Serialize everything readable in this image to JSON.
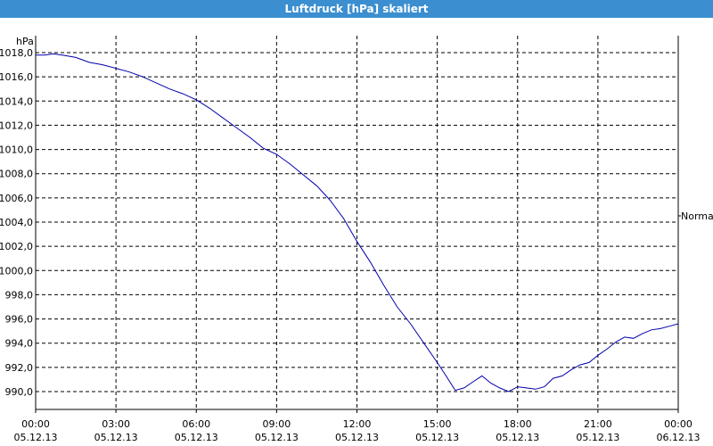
{
  "window": {
    "title": "Luftdruck [hPa] skaliert"
  },
  "colors": {
    "titlebar": "#3b8fd0",
    "series": "#0000aa",
    "grid": "#000000"
  },
  "chart_data": {
    "type": "line",
    "title": "Luftdruck [hPa] skaliert",
    "ylabel": "hPa",
    "right_label": "Normal",
    "ylim": [
      988.6,
      1019.0
    ],
    "xlim_hours": [
      0,
      24
    ],
    "grid": true,
    "y_ticks": [
      "1018,0",
      "1016,0",
      "1014,0",
      "1012,0",
      "1010,0",
      "1008,0",
      "1006,0",
      "1004,0",
      "1002,0",
      "1000,0",
      "998,0",
      "996,0",
      "994,0",
      "992,0",
      "990,0"
    ],
    "y_tick_values": [
      1018,
      1016,
      1014,
      1012,
      1010,
      1008,
      1006,
      1004,
      1002,
      1000,
      998,
      996,
      994,
      992,
      990
    ],
    "x_ticks": [
      {
        "time": "00:00",
        "date": "05.12.13"
      },
      {
        "time": "03:00",
        "date": "05.12.13"
      },
      {
        "time": "06:00",
        "date": "05.12.13"
      },
      {
        "time": "09:00",
        "date": "05.12.13"
      },
      {
        "time": "12:00",
        "date": "05.12.13"
      },
      {
        "time": "15:00",
        "date": "05.12.13"
      },
      {
        "time": "18:00",
        "date": "05.12.13"
      },
      {
        "time": "21:00",
        "date": "05.12.13"
      },
      {
        "time": "00:00",
        "date": "06.12.13"
      }
    ],
    "series": [
      {
        "x": [
          0,
          0.33,
          0.67,
          1.0,
          1.5,
          2.0,
          2.5,
          3.0,
          3.5,
          4.0,
          4.5,
          5.0,
          5.5,
          6.0,
          6.5,
          7.0,
          7.5,
          8.0,
          8.5,
          9.0,
          9.5,
          10.0,
          10.5,
          11.0,
          11.5,
          12.0,
          12.5,
          13.0,
          13.5,
          14.0,
          14.5,
          15.0,
          15.33,
          15.67,
          16.0,
          16.33,
          16.67,
          17.0,
          17.33,
          17.67,
          18.0,
          18.33,
          18.67,
          19.0,
          19.33,
          19.67,
          20.0,
          20.33,
          20.67,
          21.0,
          21.33,
          21.67,
          22.0,
          22.33,
          22.67,
          23.0,
          23.33,
          23.67,
          24.0
        ],
        "y": [
          1017.8,
          1017.8,
          1017.9,
          1017.8,
          1017.6,
          1017.2,
          1017.0,
          1016.7,
          1016.4,
          1016.0,
          1015.5,
          1015.0,
          1014.6,
          1014.1,
          1013.4,
          1012.6,
          1011.8,
          1011.0,
          1010.1,
          1009.6,
          1008.8,
          1007.9,
          1007.0,
          1005.8,
          1004.3,
          1002.4,
          1000.7,
          998.8,
          997.0,
          995.6,
          994.0,
          992.4,
          991.3,
          990.1,
          990.3,
          990.8,
          991.3,
          990.7,
          990.3,
          990.0,
          990.4,
          990.3,
          990.2,
          990.4,
          991.1,
          991.3,
          991.8,
          992.2,
          992.4,
          993.0,
          993.5,
          994.1,
          994.5,
          994.4,
          994.8,
          995.1,
          995.2,
          995.4,
          995.6
        ]
      }
    ]
  }
}
